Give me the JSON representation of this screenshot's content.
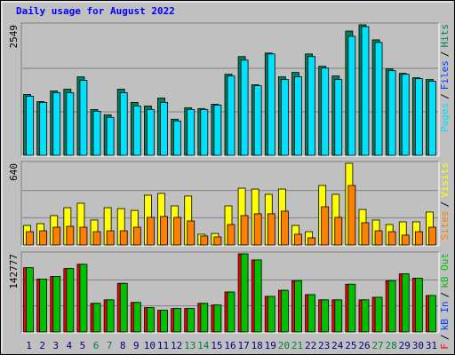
{
  "chart_data": [
    {
      "type": "bar",
      "title": "Daily usage for August 2022",
      "ylim": [
        0,
        2549
      ],
      "yticks": [
        2549
      ],
      "legend_reversed": true,
      "legend_separator": "/",
      "series": [
        {
          "name": "Hits",
          "color": "#00805c",
          "values": [
            1188,
            1050,
            1257,
            1292,
            1533,
            895,
            792,
            1292,
            1033,
            964,
            1119,
            706,
            930,
            913,
            999,
            1584,
            1929,
            1378,
            1998,
            1533,
            1619,
            1980,
            1739,
            1550,
            2428,
            2549,
            2256,
            1688,
            1601,
            1515,
            1481
          ]
        },
        {
          "name": "Files",
          "color": "#0040ff",
          "values": [
            null,
            null,
            null,
            null,
            null,
            null,
            null,
            null,
            null,
            null,
            null,
            null,
            null,
            null,
            null,
            null,
            null,
            null,
            null,
            null,
            null,
            null,
            null,
            null,
            null,
            null,
            null,
            null,
            null,
            null,
            null
          ]
        },
        {
          "name": "Pages",
          "color": "#00e0ff",
          "values": [
            1154,
            1033,
            1223,
            1223,
            1464,
            861,
            741,
            1223,
            964,
            895,
            1033,
            672,
            895,
            895,
            982,
            1550,
            1860,
            1360,
            1980,
            1481,
            1533,
            1929,
            1705,
            1481,
            2325,
            2514,
            2204,
            1653,
            1584,
            1498,
            1446
          ]
        }
      ]
    },
    {
      "type": "bar",
      "ylim": [
        0,
        640
      ],
      "yticks": [
        640
      ],
      "legend_reversed": true,
      "series": [
        {
          "name": "Visits",
          "color": "#ffff00",
          "values": [
            153,
            167,
            230,
            292,
            327,
            195,
            292,
            285,
            271,
            390,
            404,
            306,
            383,
            84,
            90,
            306,
            445,
            438,
            397,
            438,
            153,
            104,
            466,
            397,
            640,
            278,
            195,
            160,
            181,
            181,
            258
          ]
        },
        {
          "name": "Sites",
          "color": "#ff8000",
          "values": [
            104,
            111,
            139,
            146,
            139,
            104,
            111,
            111,
            139,
            216,
            223,
            216,
            188,
            70,
            63,
            160,
            230,
            244,
            244,
            265,
            84,
            56,
            299,
            216,
            466,
            174,
            111,
            104,
            77,
            104,
            139
          ]
        }
      ]
    },
    {
      "type": "bar",
      "ylim": [
        0,
        142777
      ],
      "yticks": [
        142777
      ],
      "legend_reversed": false,
      "categories": [
        "1",
        "2",
        "3",
        "4",
        "5",
        "6",
        "7",
        "8",
        "9",
        "10",
        "11",
        "12",
        "13",
        "14",
        "15",
        "16",
        "17",
        "18",
        "19",
        "20",
        "21",
        "22",
        "23",
        "24",
        "25",
        "26",
        "27",
        "28",
        "29",
        "30",
        "31"
      ],
      "label_colors": [
        "#000080",
        "#000080",
        "#000080",
        "#000080",
        "#000080",
        "#008040",
        "#008040",
        "#000080",
        "#000080",
        "#000080",
        "#000080",
        "#000080",
        "#008040",
        "#008040",
        "#000080",
        "#000080",
        "#000080",
        "#000080",
        "#000080",
        "#008040",
        "#008040",
        "#000080",
        "#000080",
        "#000080",
        "#000080",
        "#000080",
        "#008040",
        "#008040",
        "#000080",
        "#000080",
        "#000080"
      ],
      "series": [
        {
          "name": "kB F",
          "color": "#ff0000",
          "values": [
            117400,
            96700,
            101500,
            115800,
            123700,
            52300,
            58700,
            88800,
            53900,
            44400,
            39700,
            42800,
            42800,
            52300,
            49200,
            73000,
            142777,
            131600,
            65000,
            76100,
            93600,
            68200,
            58700,
            58700,
            87200,
            58700,
            63400,
            93600,
            106300,
            98300,
            66600
          ]
        },
        {
          "name": "kB In",
          "color": "#0040ff",
          "values": [
            null,
            null,
            null,
            null,
            null,
            null,
            null,
            null,
            null,
            null,
            null,
            null,
            null,
            null,
            null,
            null,
            null,
            null,
            null,
            null,
            null,
            null,
            null,
            null,
            null,
            null,
            null,
            null,
            null,
            null,
            null
          ]
        },
        {
          "name": "kB Out",
          "color": "#00c000",
          "values": [
            117400,
            96700,
            101500,
            115800,
            123700,
            52300,
            58700,
            88800,
            53900,
            44400,
            39700,
            42800,
            42800,
            52300,
            49200,
            73000,
            142777,
            131600,
            65000,
            76100,
            93600,
            68200,
            58700,
            58700,
            87200,
            58700,
            63400,
            93600,
            106300,
            98300,
            66600
          ]
        }
      ]
    }
  ]
}
